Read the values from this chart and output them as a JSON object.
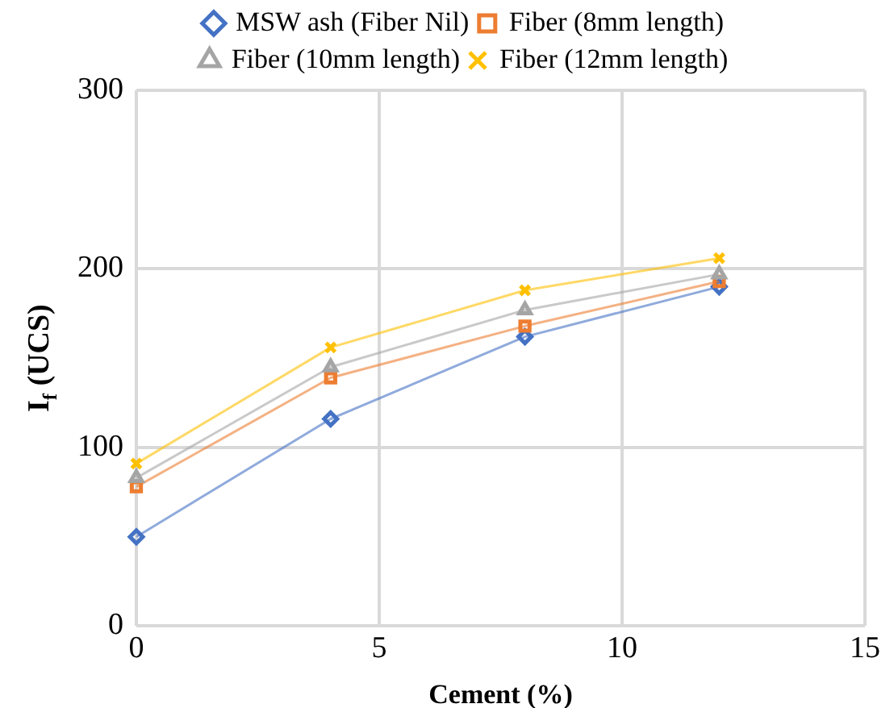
{
  "chart_data": {
    "type": "line",
    "xlabel": "Cement (%)",
    "ylabel": "I$_{f}$ (UCS)",
    "x": [
      0,
      4,
      8,
      12
    ],
    "series": [
      {
        "name": "MSW ash (Fiber Nil)",
        "color": "#4472c4",
        "marker": "diamond",
        "values": [
          50,
          116,
          162,
          190
        ]
      },
      {
        "name": "Fiber (8mm length)",
        "color": "#ed7d31",
        "marker": "square",
        "values": [
          78,
          139,
          168,
          193
        ]
      },
      {
        "name": "Fiber (10mm length)",
        "color": "#a5a5a5",
        "marker": "triangle",
        "values": [
          83,
          145,
          177,
          197
        ]
      },
      {
        "name": "Fiber (12mm length)",
        "color": "#ffc000",
        "marker": "cross",
        "values": [
          91,
          156,
          188,
          206
        ]
      }
    ],
    "xlim": [
      0,
      15
    ],
    "xticks": [
      0,
      5,
      10,
      15
    ],
    "ylim": [
      0,
      300
    ],
    "yticks": [
      0,
      100,
      200,
      300
    ],
    "grid": true,
    "legend": "top"
  }
}
